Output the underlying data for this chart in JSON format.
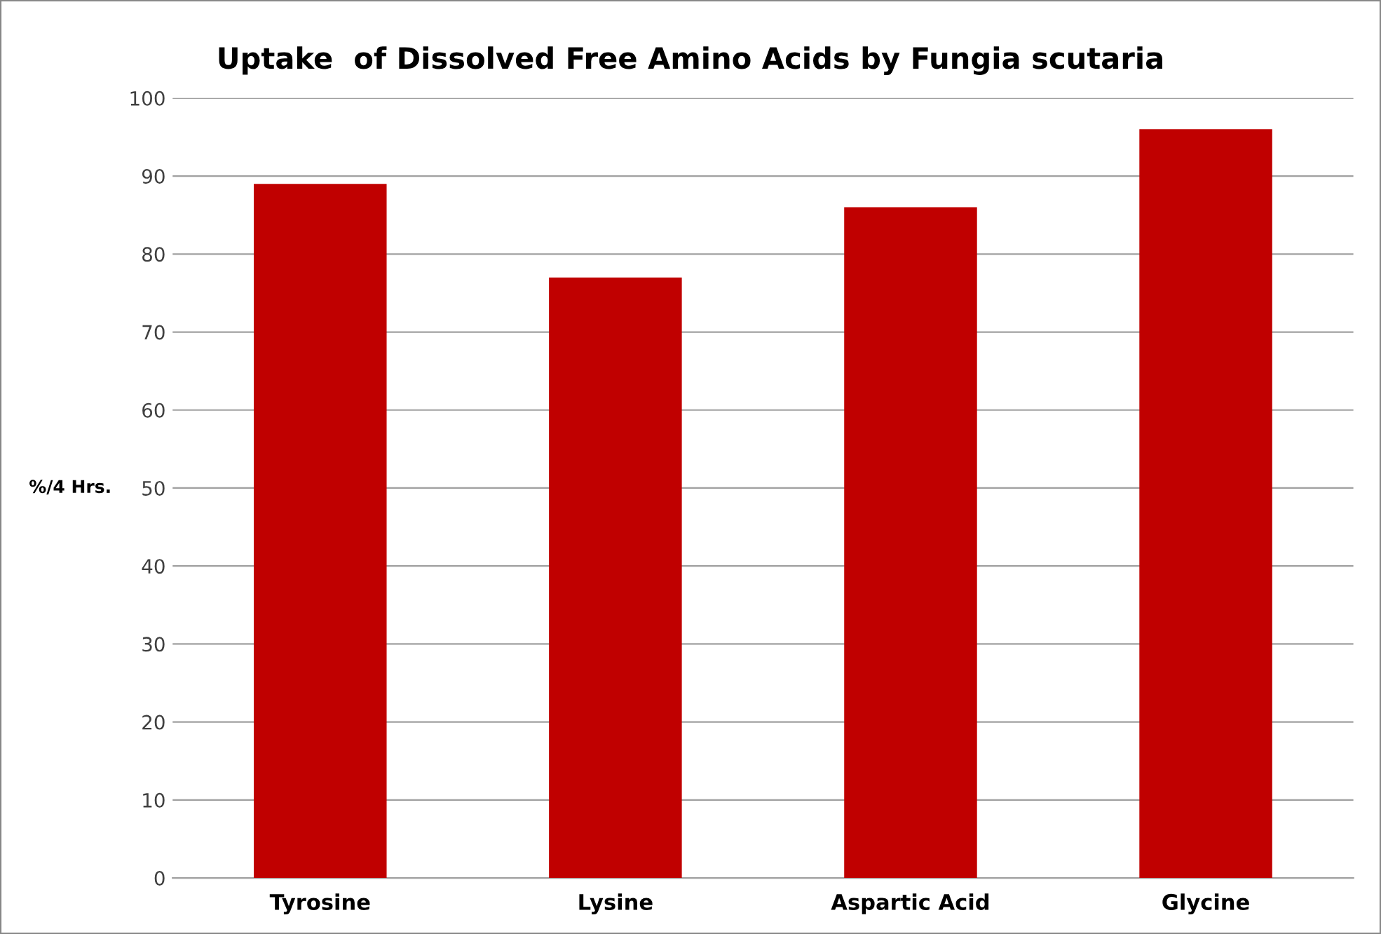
{
  "chart_data": {
    "type": "bar",
    "title": "Uptake  of Dissolved Free Amino Acids by Fungia scutaria",
    "ylabel": "%/4 Hrs.",
    "categories": [
      "Tyrosine",
      "Lysine",
      "Aspartic Acid",
      "Glycine"
    ],
    "values": [
      89,
      77,
      86,
      96
    ],
    "color": "#c00000",
    "ylim": [
      0,
      100
    ],
    "yticks": [
      0,
      10,
      20,
      30,
      40,
      50,
      60,
      70,
      80,
      90,
      100
    ],
    "grid": "y",
    "legend": false
  }
}
